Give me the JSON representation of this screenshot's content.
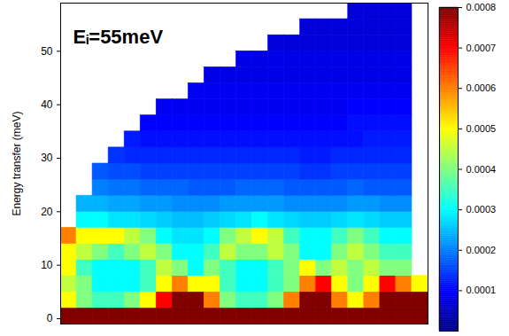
{
  "chart_data": {
    "type": "heatmap",
    "annotations": [
      "Eᵢ=55meV"
    ],
    "ylabel": "Energy transfer (meV)",
    "xlim": [
      0,
      23
    ],
    "ylim": [
      -1,
      59
    ],
    "yticks": [
      0,
      10,
      20,
      30,
      40,
      50
    ],
    "tick_labels": "y",
    "grid": false,
    "x_bins": [
      0,
      1,
      2,
      3,
      4,
      5,
      6,
      7,
      8,
      9,
      10,
      11,
      12,
      13,
      14,
      15,
      16,
      17,
      18,
      19,
      20,
      21,
      22,
      23
    ],
    "y_bins": [
      -1,
      2,
      5,
      8,
      11,
      14,
      17,
      20,
      23,
      26,
      29,
      32,
      35,
      38,
      41,
      44,
      47,
      50,
      53,
      56,
      59
    ],
    "cells": [
      [
        0.0008,
        0.0008,
        0.0008,
        0.0008,
        0.0008,
        0.0008,
        0.0008,
        0.0008,
        0.0008,
        0.0008,
        0.0008,
        0.0008,
        0.0008,
        0.0008,
        0.0008,
        0.0008,
        0.0008,
        0.0008,
        0.0008,
        0.0008,
        0.0008,
        0.0008,
        0.0008
      ],
      [
        0.0005,
        0.0004,
        0.00035,
        0.00035,
        0.0004,
        0.0005,
        0.0007,
        0.0008,
        0.0008,
        0.0006,
        0.0004,
        0.00035,
        0.00035,
        0.0004,
        0.0006,
        0.0008,
        0.0008,
        0.0006,
        0.0005,
        0.0006,
        0.0008,
        0.0008,
        0.0008
      ],
      [
        0.00045,
        0.0004,
        0.0003,
        0.0003,
        0.0003,
        0.00035,
        0.0005,
        0.0006,
        0.0005,
        0.0005,
        0.00035,
        0.0003,
        0.0003,
        0.00035,
        0.0004,
        0.0006,
        0.0007,
        0.0005,
        0.0004,
        0.0005,
        0.0007,
        0.0006,
        0.0005
      ],
      [
        0.0005,
        0.00035,
        0.0003,
        0.0003,
        0.0003,
        0.00035,
        0.00045,
        0.0004,
        0.0003,
        0.0004,
        0.00035,
        0.0003,
        0.0003,
        0.00035,
        0.0004,
        0.0005,
        0.0004,
        0.00045,
        0.0004,
        0.00045,
        0.0004,
        0.0004,
        null
      ],
      [
        0.0005,
        0.00045,
        0.0004,
        0.00035,
        0.0004,
        0.00045,
        0.0004,
        0.0003,
        0.0003,
        0.00035,
        0.00045,
        0.0004,
        0.0004,
        0.00045,
        0.0004,
        0.0003,
        0.0003,
        0.0004,
        0.00045,
        0.0004,
        0.00035,
        0.00035,
        null
      ],
      [
        0.0006,
        0.0005,
        0.0005,
        0.0005,
        0.00045,
        0.0004,
        0.0003,
        0.00028,
        0.00028,
        0.0003,
        0.0004,
        0.00045,
        0.0005,
        0.00045,
        0.00035,
        0.0003,
        0.0003,
        0.00035,
        0.0004,
        0.00035,
        0.0003,
        0.0003,
        null
      ],
      [
        null,
        0.0003,
        0.0003,
        0.00028,
        0.00028,
        0.00027,
        0.00026,
        0.00025,
        0.00025,
        0.00026,
        0.00027,
        0.00028,
        0.0003,
        0.00028,
        0.00027,
        0.00026,
        0.00026,
        0.00027,
        0.00028,
        0.00027,
        0.00026,
        0.00026,
        null
      ],
      [
        null,
        0.00024,
        0.00024,
        0.00023,
        0.00023,
        0.00022,
        0.00022,
        0.00021,
        0.00021,
        0.00021,
        0.00022,
        0.00022,
        0.00022,
        0.00022,
        0.00021,
        0.00021,
        0.00021,
        0.00021,
        0.00022,
        0.00022,
        0.00021,
        0.00021,
        null
      ],
      [
        null,
        null,
        0.0002,
        0.00019,
        0.00019,
        0.00018,
        0.00018,
        0.00018,
        0.00017,
        0.00017,
        0.00017,
        0.00018,
        0.00018,
        0.00018,
        0.00017,
        0.00017,
        0.00017,
        0.00017,
        0.00018,
        0.00017,
        0.00017,
        0.00017,
        null
      ],
      [
        null,
        null,
        0.00017,
        0.00016,
        0.00016,
        0.00015,
        0.00015,
        0.00015,
        0.00015,
        0.00015,
        0.00015,
        0.00015,
        0.00015,
        0.00015,
        0.00015,
        0.00014,
        0.00014,
        0.00015,
        0.00015,
        0.00015,
        0.00015,
        0.00015,
        null
      ],
      [
        null,
        null,
        null,
        0.00014,
        0.00013,
        0.00013,
        0.00013,
        0.00013,
        0.00013,
        0.00013,
        0.00013,
        0.00013,
        0.00013,
        0.00013,
        0.00013,
        0.00012,
        0.00012,
        0.00013,
        0.00013,
        0.00013,
        0.00013,
        0.00013,
        null
      ],
      [
        null,
        null,
        null,
        null,
        0.00012,
        0.00011,
        0.00011,
        0.00011,
        0.00011,
        0.00011,
        0.00011,
        0.00011,
        0.00011,
        0.00011,
        0.00011,
        0.00011,
        0.00011,
        0.00011,
        0.00011,
        0.00012,
        0.00012,
        0.00012,
        null
      ],
      [
        null,
        null,
        null,
        null,
        null,
        0.0001,
        0.0001,
        0.0001,
        0.0001,
        0.0001,
        0.0001,
        0.0001,
        0.0001,
        0.0001,
        0.0001,
        0.0001,
        0.0001,
        0.0001,
        0.00011,
        0.00011,
        0.00011,
        0.00011,
        null
      ],
      [
        null,
        null,
        null,
        null,
        null,
        null,
        9e-05,
        9e-05,
        9e-05,
        9e-05,
        9e-05,
        9e-05,
        9e-05,
        9e-05,
        9e-05,
        9e-05,
        9e-05,
        9e-05,
        0.0001,
        0.0001,
        0.0001,
        0.0001,
        null
      ],
      [
        null,
        null,
        null,
        null,
        null,
        null,
        null,
        null,
        9e-05,
        9e-05,
        9e-05,
        9e-05,
        9e-05,
        9e-05,
        9e-05,
        9e-05,
        9e-05,
        9e-05,
        9e-05,
        9e-05,
        9e-05,
        9e-05,
        null
      ],
      [
        null,
        null,
        null,
        null,
        null,
        null,
        null,
        null,
        null,
        8e-05,
        8e-05,
        8e-05,
        8e-05,
        8e-05,
        8e-05,
        8e-05,
        8e-05,
        8e-05,
        8e-05,
        8e-05,
        8e-05,
        8e-05,
        null
      ],
      [
        null,
        null,
        null,
        null,
        null,
        null,
        null,
        null,
        null,
        null,
        null,
        8e-05,
        8e-05,
        8e-05,
        8e-05,
        8e-05,
        8e-05,
        8e-05,
        8e-05,
        8e-05,
        8e-05,
        8e-05,
        null
      ],
      [
        null,
        null,
        null,
        null,
        null,
        null,
        null,
        null,
        null,
        null,
        null,
        null,
        null,
        7e-05,
        7e-05,
        7e-05,
        7e-05,
        7e-05,
        7e-05,
        7e-05,
        7e-05,
        7e-05,
        null
      ],
      [
        null,
        null,
        null,
        null,
        null,
        null,
        null,
        null,
        null,
        null,
        null,
        null,
        null,
        null,
        null,
        7e-05,
        7e-05,
        7e-05,
        7e-05,
        7e-05,
        7e-05,
        7e-05,
        null
      ],
      [
        null,
        null,
        null,
        null,
        null,
        null,
        null,
        null,
        null,
        null,
        null,
        null,
        null,
        null,
        null,
        null,
        null,
        null,
        7e-05,
        7e-05,
        7e-05,
        7e-05,
        null
      ]
    ],
    "colorbar": {
      "range": [
        0,
        0.0008
      ],
      "ticks": [
        0.0001,
        0.0002,
        0.0003,
        0.0004,
        0.0005,
        0.0006,
        0.0007,
        0.0008
      ]
    }
  }
}
